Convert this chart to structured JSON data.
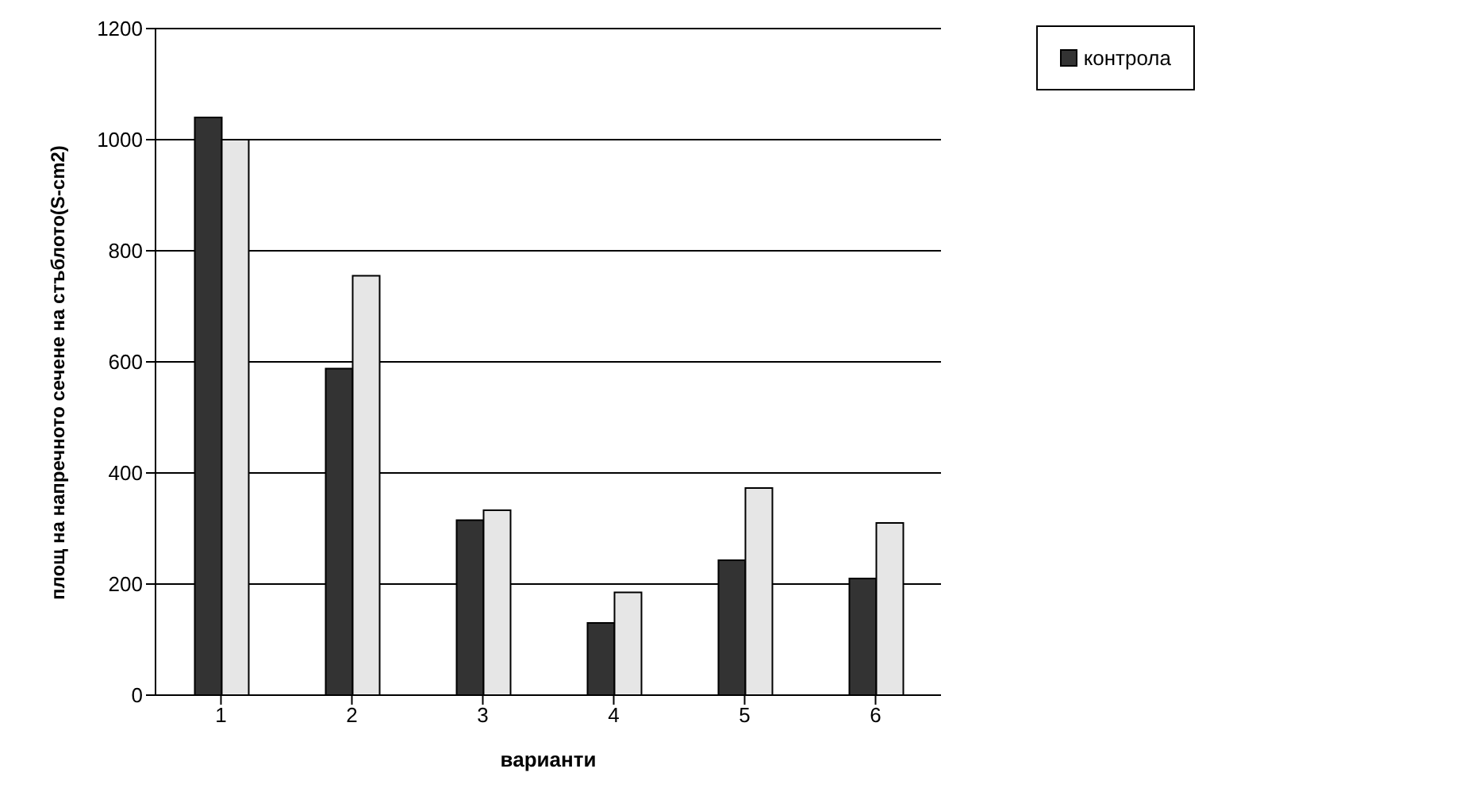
{
  "chart_data": {
    "type": "bar",
    "xlabel": "варианти",
    "ylabel": "площ на напречното сечене на стъблото(S-cm2)",
    "categories": [
      "1",
      "2",
      "3",
      "4",
      "5",
      "6"
    ],
    "series": [
      {
        "name": "контрола",
        "color": "#333333",
        "values": [
          1040,
          588,
          315,
          130,
          243,
          210
        ]
      },
      {
        "color": "#e6e6e6",
        "values": [
          1000,
          755,
          333,
          185,
          373,
          310
        ]
      }
    ],
    "ylim": [
      0,
      1200
    ],
    "yticks": [
      0,
      200,
      400,
      600,
      800,
      1000,
      1200
    ],
    "grid": "y",
    "legend": "top right"
  }
}
